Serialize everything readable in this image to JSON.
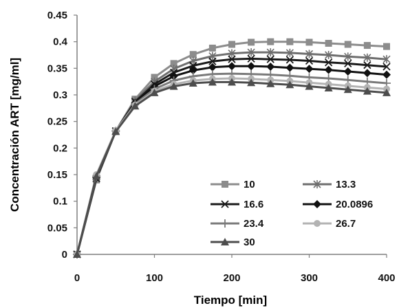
{
  "chart_data": {
    "type": "line",
    "xlabel": "Tiempo [min]",
    "ylabel": "Concentración  ART [mg/ml]",
    "xlim": [
      0,
      400
    ],
    "ylim": [
      0,
      0.45
    ],
    "xticks": [
      "0",
      "100",
      "200",
      "300",
      "400"
    ],
    "yticks": [
      "0",
      "0.05",
      "0.1",
      "0.15",
      "0.2",
      "0.25",
      "0.3",
      "0.35",
      "0.4",
      "0.45"
    ],
    "grid": "none",
    "legend_position": "bottom-right inside plot",
    "x": [
      0,
      25,
      50,
      75,
      100,
      125,
      150,
      175,
      200,
      225,
      250,
      275,
      300,
      325,
      350,
      375,
      400
    ],
    "series": [
      {
        "name": "10",
        "color": "#8c8c8c",
        "marker": "square",
        "values": [
          0,
          0.14,
          0.232,
          0.292,
          0.333,
          0.359,
          0.376,
          0.388,
          0.395,
          0.399,
          0.4,
          0.4,
          0.399,
          0.397,
          0.395,
          0.393,
          0.391
        ]
      },
      {
        "name": "13.3",
        "color": "#6e6e6e",
        "marker": "asterisk",
        "values": [
          0,
          0.142,
          0.232,
          0.289,
          0.325,
          0.349,
          0.364,
          0.373,
          0.378,
          0.38,
          0.38,
          0.379,
          0.377,
          0.375,
          0.372,
          0.37,
          0.367
        ]
      },
      {
        "name": "16.6",
        "color": "#1a1a1a",
        "marker": "x",
        "values": [
          0,
          0.143,
          0.232,
          0.287,
          0.32,
          0.342,
          0.355,
          0.363,
          0.367,
          0.368,
          0.367,
          0.366,
          0.364,
          0.361,
          0.359,
          0.356,
          0.353
        ]
      },
      {
        "name": "20.0896",
        "color": "#111111",
        "marker": "diamond",
        "values": [
          0,
          0.144,
          0.232,
          0.285,
          0.316,
          0.335,
          0.346,
          0.352,
          0.354,
          0.354,
          0.353,
          0.351,
          0.349,
          0.347,
          0.344,
          0.341,
          0.338
        ]
      },
      {
        "name": "23.4",
        "color": "#7a7a7a",
        "marker": "plus",
        "values": [
          0,
          0.146,
          0.232,
          0.283,
          0.311,
          0.327,
          0.335,
          0.339,
          0.34,
          0.339,
          0.338,
          0.336,
          0.333,
          0.331,
          0.328,
          0.325,
          0.322
        ]
      },
      {
        "name": "26.7",
        "color": "#b3b3b3",
        "marker": "circle",
        "values": [
          0,
          0.15,
          0.233,
          0.281,
          0.307,
          0.32,
          0.327,
          0.33,
          0.331,
          0.33,
          0.328,
          0.326,
          0.323,
          0.32,
          0.317,
          0.314,
          0.311
        ]
      },
      {
        "name": "30",
        "color": "#4d4d4d",
        "marker": "triangle",
        "values": [
          0,
          0.147,
          0.231,
          0.279,
          0.304,
          0.316,
          0.322,
          0.324,
          0.324,
          0.323,
          0.321,
          0.319,
          0.316,
          0.313,
          0.31,
          0.307,
          0.304
        ]
      }
    ]
  }
}
